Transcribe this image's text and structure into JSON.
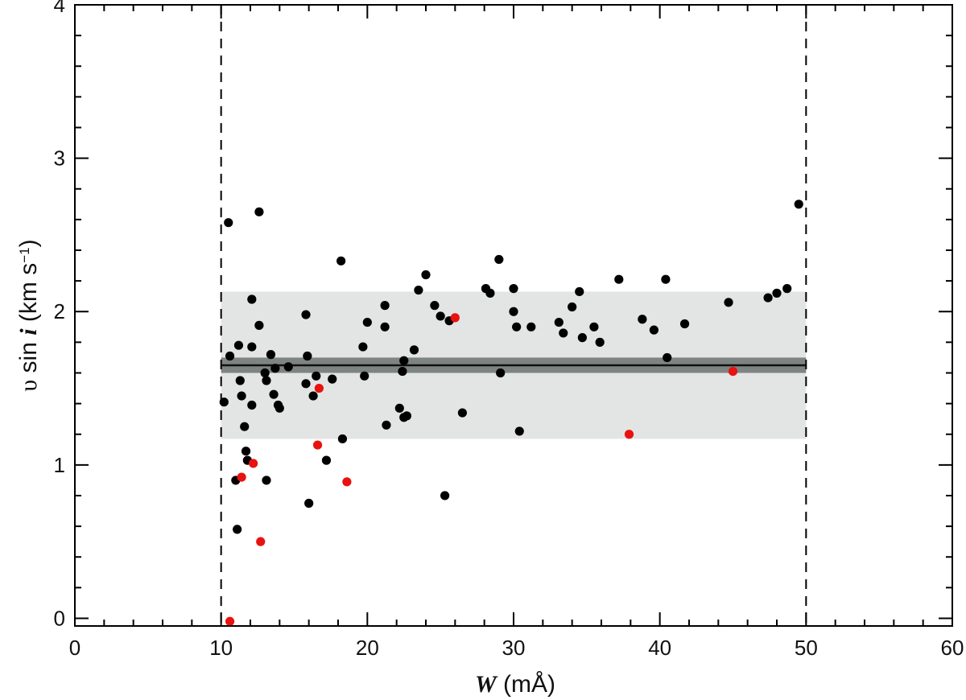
{
  "chart_data": {
    "type": "scatter",
    "title": "",
    "xlabel": {
      "symbol": "W",
      "unit": " (mÅ)"
    },
    "ylabel": {
      "symbol_v": "υ",
      "sin": " sin ",
      "symbol_i": "i",
      "unit_open": " (km s",
      "unit_exp": "−1",
      "unit_close": ")"
    },
    "xlim": [
      0,
      60
    ],
    "ylim": [
      -0.05,
      4.0
    ],
    "x_major_ticks": [
      0,
      10,
      20,
      30,
      40,
      50,
      60
    ],
    "x_tick_labels": [
      "0",
      "10",
      "20",
      "30",
      "40",
      "50",
      "60"
    ],
    "y_major_ticks": [
      0,
      1,
      2,
      3,
      4
    ],
    "y_tick_labels": [
      "0",
      "1",
      "2",
      "3",
      "4"
    ],
    "x_minor_step": 2,
    "y_minor_step": 0.2,
    "grid": false,
    "legend": "none",
    "vertical_dashed_lines": [
      10,
      50
    ],
    "mean_line": {
      "x_range": [
        10,
        50
      ],
      "value": 1.65
    },
    "mean_error_band": {
      "x_range": [
        10,
        50
      ],
      "y_range": [
        1.6,
        1.7
      ]
    },
    "scatter_band": {
      "x_range": [
        10,
        50
      ],
      "y_range": [
        1.17,
        2.13
      ]
    },
    "colors": {
      "black_points": "#000000",
      "red_points": "#e8120f",
      "scatter_band": "#e3e5e4",
      "mean_band": "#7d8482",
      "mean_line": "#111111"
    },
    "series": [
      {
        "color": "#000000",
        "points": [
          [
            10.2,
            1.41
          ],
          [
            10.5,
            2.58
          ],
          [
            10.6,
            1.71
          ],
          [
            11.0,
            0.9
          ],
          [
            11.1,
            0.58
          ],
          [
            11.2,
            1.78
          ],
          [
            11.3,
            1.55
          ],
          [
            11.4,
            1.45
          ],
          [
            11.6,
            1.25
          ],
          [
            11.7,
            1.09
          ],
          [
            11.8,
            1.03
          ],
          [
            12.1,
            1.39
          ],
          [
            12.1,
            1.77
          ],
          [
            12.1,
            2.08
          ],
          [
            12.6,
            1.91
          ],
          [
            12.6,
            2.65
          ],
          [
            13.0,
            1.6
          ],
          [
            13.1,
            1.55
          ],
          [
            13.1,
            0.9
          ],
          [
            13.4,
            1.72
          ],
          [
            13.6,
            1.46
          ],
          [
            13.7,
            1.63
          ],
          [
            13.9,
            1.39
          ],
          [
            14.0,
            1.37
          ],
          [
            14.6,
            1.64
          ],
          [
            15.8,
            1.53
          ],
          [
            15.8,
            1.98
          ],
          [
            15.9,
            1.71
          ],
          [
            16.0,
            0.75
          ],
          [
            16.3,
            1.45
          ],
          [
            16.5,
            1.58
          ],
          [
            17.2,
            1.03
          ],
          [
            17.6,
            1.56
          ],
          [
            18.2,
            2.33
          ],
          [
            18.3,
            1.17
          ],
          [
            19.7,
            1.77
          ],
          [
            19.8,
            1.58
          ],
          [
            20.0,
            1.93
          ],
          [
            21.2,
            2.04
          ],
          [
            21.2,
            1.9
          ],
          [
            21.3,
            1.26
          ],
          [
            22.2,
            1.37
          ],
          [
            22.4,
            1.61
          ],
          [
            22.5,
            1.68
          ],
          [
            22.5,
            1.31
          ],
          [
            22.7,
            1.32
          ],
          [
            23.2,
            1.75
          ],
          [
            23.5,
            2.14
          ],
          [
            24.0,
            2.24
          ],
          [
            24.6,
            2.04
          ],
          [
            25.0,
            1.97
          ],
          [
            25.3,
            0.8
          ],
          [
            25.6,
            1.94
          ],
          [
            26.5,
            1.34
          ],
          [
            28.1,
            2.15
          ],
          [
            28.4,
            2.12
          ],
          [
            29.0,
            2.34
          ],
          [
            29.1,
            1.6
          ],
          [
            30.0,
            2.15
          ],
          [
            30.0,
            2.0
          ],
          [
            30.2,
            1.9
          ],
          [
            30.4,
            1.22
          ],
          [
            31.2,
            1.9
          ],
          [
            33.1,
            1.93
          ],
          [
            33.4,
            1.86
          ],
          [
            34.0,
            2.03
          ],
          [
            34.5,
            2.13
          ],
          [
            34.7,
            1.83
          ],
          [
            35.5,
            1.9
          ],
          [
            35.9,
            1.8
          ],
          [
            37.2,
            2.21
          ],
          [
            38.8,
            1.95
          ],
          [
            39.6,
            1.88
          ],
          [
            40.4,
            2.21
          ],
          [
            40.5,
            1.7
          ],
          [
            41.7,
            1.92
          ],
          [
            44.7,
            2.06
          ],
          [
            47.4,
            2.09
          ],
          [
            48.0,
            2.12
          ],
          [
            48.7,
            2.15
          ],
          [
            49.5,
            2.7
          ]
        ]
      },
      {
        "color": "#e8120f",
        "points": [
          [
            10.6,
            -0.02
          ],
          [
            11.4,
            0.92
          ],
          [
            12.2,
            1.01
          ],
          [
            12.7,
            0.5
          ],
          [
            16.6,
            1.13
          ],
          [
            16.7,
            1.5
          ],
          [
            18.6,
            0.89
          ],
          [
            26.0,
            1.96
          ],
          [
            37.9,
            1.2
          ],
          [
            45.0,
            1.61
          ]
        ]
      }
    ]
  }
}
